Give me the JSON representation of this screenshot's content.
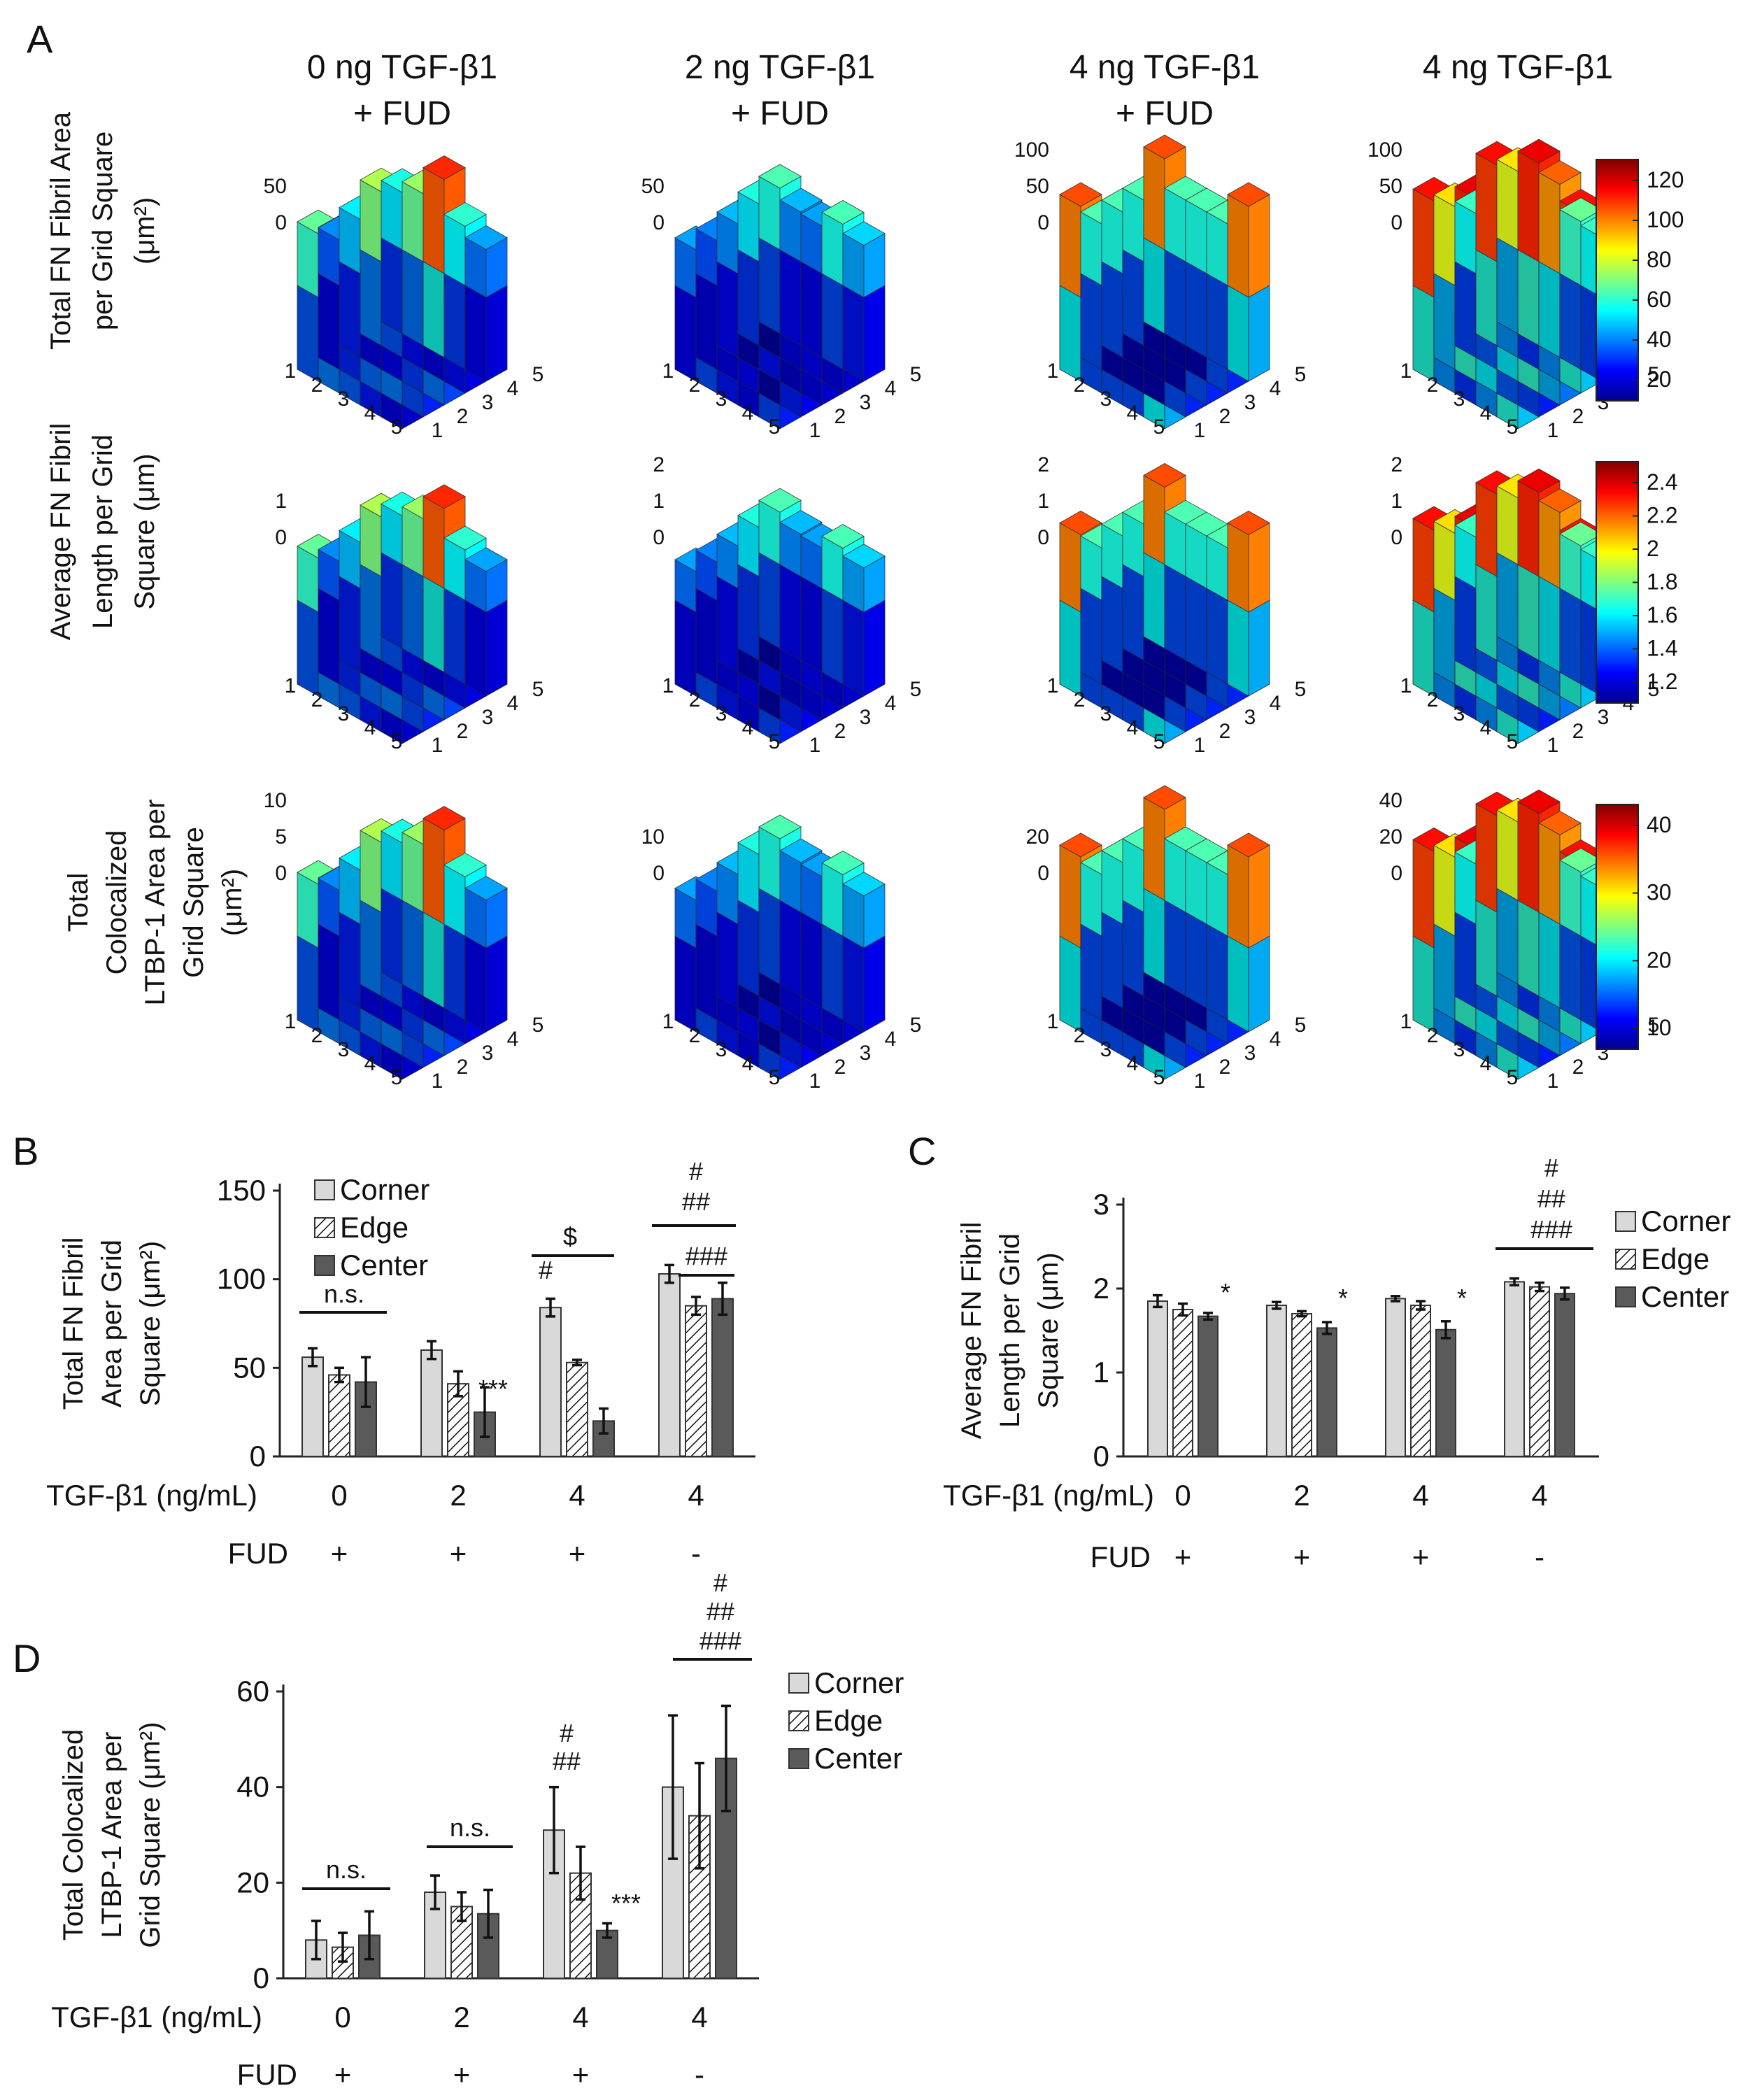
{
  "figure": {
    "panel_a": {
      "letter": "A",
      "columns": [
        {
          "line1": "0 ng TGF-β1",
          "line2": "+ FUD"
        },
        {
          "line1": "2 ng TGF-β1",
          "line2": "+ FUD"
        },
        {
          "line1": "4 ng TGF-β1",
          "line2": "+ FUD"
        },
        {
          "line1": "4 ng TGF-β1",
          "line2": ""
        }
      ],
      "rows": [
        {
          "label_lines": [
            "Total FN Fibril Area",
            "per Grid Square",
            "(μm²)"
          ],
          "colorbar_ticks": [
            "120",
            "100",
            "80",
            "60",
            "40",
            "20"
          ],
          "z_ticks": [
            [
              "50",
              "0"
            ],
            [
              "50",
              "0"
            ],
            [
              "100",
              "50",
              "0"
            ],
            [
              "100",
              "50",
              "0"
            ]
          ]
        },
        {
          "label_lines": [
            "Average  FN Fibril",
            "Length per Grid",
            "Square (μm)"
          ],
          "colorbar_ticks": [
            "2.4",
            "2.2",
            "2",
            "1.8",
            "1.6",
            "1.4",
            "1.2"
          ],
          "z_ticks": [
            [
              "1",
              "0"
            ],
            [
              "2",
              "1",
              "0"
            ],
            [
              "2",
              "1",
              "0"
            ],
            [
              "2",
              "1",
              "0"
            ]
          ]
        },
        {
          "label_lines": [
            "Total",
            "Colocalized",
            "LTBP-1 Area per",
            "Grid Square",
            "(μm²)"
          ],
          "colorbar_ticks": [
            "40",
            "30",
            "20",
            "10"
          ],
          "z_ticks": [
            [
              "10",
              "5",
              "0"
            ],
            [
              "10",
              "0"
            ],
            [
              "20",
              "0"
            ],
            [
              "40",
              "20",
              "0"
            ]
          ]
        }
      ],
      "grid_axis_labels": [
        "1",
        "2",
        "3",
        "4",
        "5"
      ]
    },
    "legend": [
      "Corner",
      "Edge",
      "Center"
    ],
    "x_row_label": "TGF-β1 (ng/mL)",
    "fud_label": "FUD"
  },
  "chart_data": [
    {
      "panel": "B",
      "type": "bar",
      "ylabel": "Total FN Fibril Area per Grid Square (μm²)",
      "ylim": [
        0,
        150
      ],
      "yticks": [
        "0",
        "50",
        "100",
        "150"
      ],
      "categories": [
        "0",
        "2",
        "4",
        "4"
      ],
      "fud": [
        "+",
        "+",
        "+",
        "-"
      ],
      "series": [
        {
          "name": "Corner",
          "values": [
            56,
            60,
            84,
            103
          ],
          "errors": [
            5,
            5,
            5,
            5
          ]
        },
        {
          "name": "Edge",
          "values": [
            46,
            41,
            53,
            85
          ],
          "errors": [
            4,
            7,
            1.5,
            5
          ]
        },
        {
          "name": "Center",
          "values": [
            42,
            25,
            20,
            89
          ],
          "errors": [
            14,
            14,
            7,
            9
          ]
        }
      ],
      "annotations": {
        "ns": "n.s.",
        "dollar": "$",
        "hash1": "#",
        "hash2": "##",
        "hash3": "###",
        "star3": "***"
      }
    },
    {
      "panel": "C",
      "type": "bar",
      "ylabel": "Average  FN Fibril Length per Grid Square (μm)",
      "ylim": [
        0,
        3
      ],
      "yticks": [
        "0",
        "1",
        "2",
        "3"
      ],
      "categories": [
        "0",
        "2",
        "4",
        "4"
      ],
      "fud": [
        "+",
        "+",
        "+",
        "-"
      ],
      "series": [
        {
          "name": "Corner",
          "values": [
            1.85,
            1.8,
            1.88,
            2.08
          ],
          "errors": [
            0.07,
            0.04,
            0.03,
            0.04
          ]
        },
        {
          "name": "Edge",
          "values": [
            1.75,
            1.7,
            1.8,
            2.02
          ],
          "errors": [
            0.07,
            0.03,
            0.05,
            0.05
          ]
        },
        {
          "name": "Center",
          "values": [
            1.67,
            1.53,
            1.51,
            1.94
          ],
          "errors": [
            0.04,
            0.07,
            0.1,
            0.07
          ]
        }
      ],
      "annotations": {
        "star1": "*",
        "hash1": "#",
        "hash2": "##",
        "hash3": "###"
      }
    },
    {
      "panel": "D",
      "type": "bar",
      "ylabel": "Total Colocalized LTBP-1 Area per Grid Square (μm²)",
      "ylim": [
        0,
        60
      ],
      "yticks": [
        "0",
        "20",
        "40",
        "60"
      ],
      "categories": [
        "0",
        "2",
        "4",
        "4"
      ],
      "fud": [
        "+",
        "+",
        "+",
        "-"
      ],
      "series": [
        {
          "name": "Corner",
          "values": [
            8,
            18,
            31,
            40
          ],
          "errors": [
            4,
            3.5,
            9,
            15
          ]
        },
        {
          "name": "Edge",
          "values": [
            6.5,
            15,
            22,
            34
          ],
          "errors": [
            3,
            3,
            5.5,
            11
          ]
        },
        {
          "name": "Center",
          "values": [
            9,
            13.5,
            10,
            46
          ],
          "errors": [
            5,
            5,
            1.5,
            11
          ]
        }
      ],
      "annotations": {
        "ns": "n.s.",
        "hash1": "#",
        "hash2": "##",
        "hash3": "###",
        "star3": "***"
      }
    }
  ]
}
